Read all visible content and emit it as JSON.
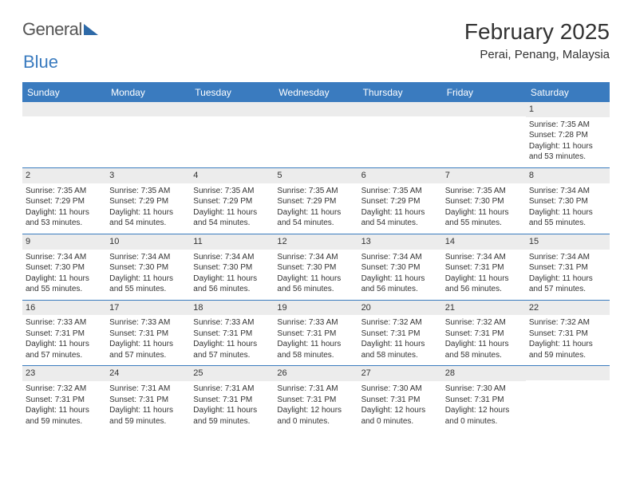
{
  "logo": {
    "word1": "General",
    "word2": "Blue"
  },
  "title": "February 2025",
  "location": "Perai, Penang, Malaysia",
  "colors": {
    "header_bg": "#3a7bbf",
    "header_text": "#ffffff",
    "daynum_bg": "#ececec",
    "text": "#333333",
    "divider": "#3a7bbf",
    "logo_gray": "#555555",
    "logo_blue": "#3a7bbf",
    "triangle": "#2e6aa8"
  },
  "typography": {
    "title_fontsize": 28,
    "location_fontsize": 15,
    "weekday_fontsize": 12,
    "daynum_fontsize": 11,
    "cell_fontsize": 10,
    "logo_fontsize": 22
  },
  "weekdays": [
    "Sunday",
    "Monday",
    "Tuesday",
    "Wednesday",
    "Thursday",
    "Friday",
    "Saturday"
  ],
  "weeks": [
    [
      null,
      null,
      null,
      null,
      null,
      null,
      {
        "n": "1",
        "sunrise": "7:35 AM",
        "sunset": "7:28 PM",
        "daylight": "11 hours and 53 minutes."
      }
    ],
    [
      {
        "n": "2",
        "sunrise": "7:35 AM",
        "sunset": "7:29 PM",
        "daylight": "11 hours and 53 minutes."
      },
      {
        "n": "3",
        "sunrise": "7:35 AM",
        "sunset": "7:29 PM",
        "daylight": "11 hours and 54 minutes."
      },
      {
        "n": "4",
        "sunrise": "7:35 AM",
        "sunset": "7:29 PM",
        "daylight": "11 hours and 54 minutes."
      },
      {
        "n": "5",
        "sunrise": "7:35 AM",
        "sunset": "7:29 PM",
        "daylight": "11 hours and 54 minutes."
      },
      {
        "n": "6",
        "sunrise": "7:35 AM",
        "sunset": "7:29 PM",
        "daylight": "11 hours and 54 minutes."
      },
      {
        "n": "7",
        "sunrise": "7:35 AM",
        "sunset": "7:30 PM",
        "daylight": "11 hours and 55 minutes."
      },
      {
        "n": "8",
        "sunrise": "7:34 AM",
        "sunset": "7:30 PM",
        "daylight": "11 hours and 55 minutes."
      }
    ],
    [
      {
        "n": "9",
        "sunrise": "7:34 AM",
        "sunset": "7:30 PM",
        "daylight": "11 hours and 55 minutes."
      },
      {
        "n": "10",
        "sunrise": "7:34 AM",
        "sunset": "7:30 PM",
        "daylight": "11 hours and 55 minutes."
      },
      {
        "n": "11",
        "sunrise": "7:34 AM",
        "sunset": "7:30 PM",
        "daylight": "11 hours and 56 minutes."
      },
      {
        "n": "12",
        "sunrise": "7:34 AM",
        "sunset": "7:30 PM",
        "daylight": "11 hours and 56 minutes."
      },
      {
        "n": "13",
        "sunrise": "7:34 AM",
        "sunset": "7:30 PM",
        "daylight": "11 hours and 56 minutes."
      },
      {
        "n": "14",
        "sunrise": "7:34 AM",
        "sunset": "7:31 PM",
        "daylight": "11 hours and 56 minutes."
      },
      {
        "n": "15",
        "sunrise": "7:34 AM",
        "sunset": "7:31 PM",
        "daylight": "11 hours and 57 minutes."
      }
    ],
    [
      {
        "n": "16",
        "sunrise": "7:33 AM",
        "sunset": "7:31 PM",
        "daylight": "11 hours and 57 minutes."
      },
      {
        "n": "17",
        "sunrise": "7:33 AM",
        "sunset": "7:31 PM",
        "daylight": "11 hours and 57 minutes."
      },
      {
        "n": "18",
        "sunrise": "7:33 AM",
        "sunset": "7:31 PM",
        "daylight": "11 hours and 57 minutes."
      },
      {
        "n": "19",
        "sunrise": "7:33 AM",
        "sunset": "7:31 PM",
        "daylight": "11 hours and 58 minutes."
      },
      {
        "n": "20",
        "sunrise": "7:32 AM",
        "sunset": "7:31 PM",
        "daylight": "11 hours and 58 minutes."
      },
      {
        "n": "21",
        "sunrise": "7:32 AM",
        "sunset": "7:31 PM",
        "daylight": "11 hours and 58 minutes."
      },
      {
        "n": "22",
        "sunrise": "7:32 AM",
        "sunset": "7:31 PM",
        "daylight": "11 hours and 59 minutes."
      }
    ],
    [
      {
        "n": "23",
        "sunrise": "7:32 AM",
        "sunset": "7:31 PM",
        "daylight": "11 hours and 59 minutes."
      },
      {
        "n": "24",
        "sunrise": "7:31 AM",
        "sunset": "7:31 PM",
        "daylight": "11 hours and 59 minutes."
      },
      {
        "n": "25",
        "sunrise": "7:31 AM",
        "sunset": "7:31 PM",
        "daylight": "11 hours and 59 minutes."
      },
      {
        "n": "26",
        "sunrise": "7:31 AM",
        "sunset": "7:31 PM",
        "daylight": "12 hours and 0 minutes."
      },
      {
        "n": "27",
        "sunrise": "7:30 AM",
        "sunset": "7:31 PM",
        "daylight": "12 hours and 0 minutes."
      },
      {
        "n": "28",
        "sunrise": "7:30 AM",
        "sunset": "7:31 PM",
        "daylight": "12 hours and 0 minutes."
      },
      null
    ]
  ],
  "labels": {
    "sunrise": "Sunrise: ",
    "sunset": "Sunset: ",
    "daylight": "Daylight: "
  }
}
